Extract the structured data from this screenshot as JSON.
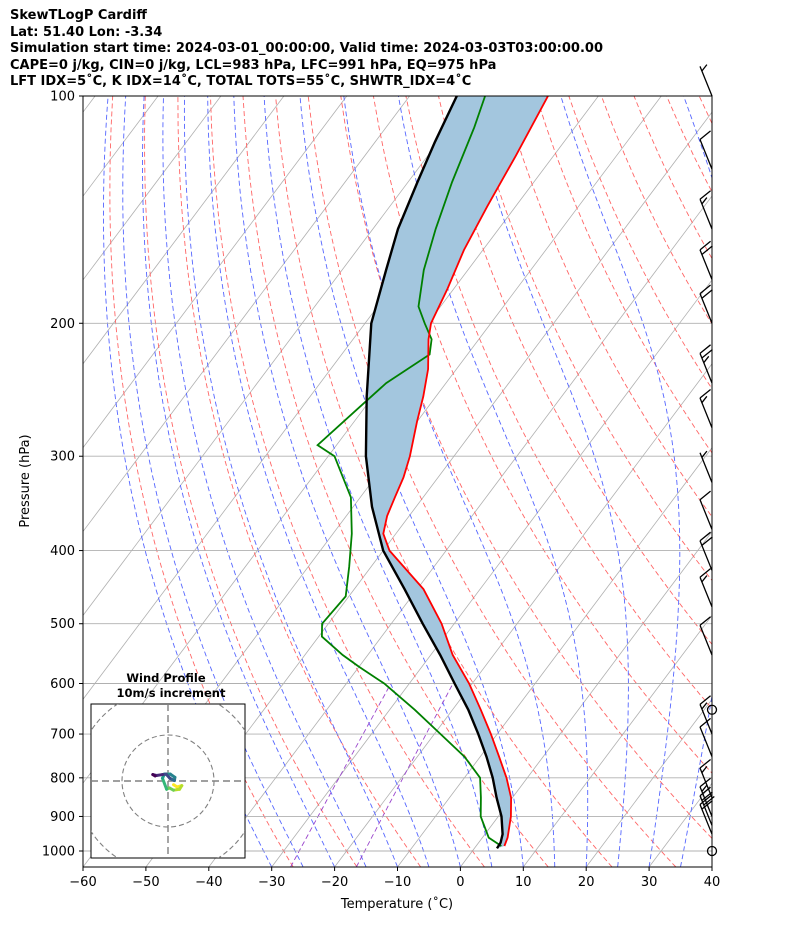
{
  "title_lines": [
    "SkewTLogP Cardiff",
    "Lat: 51.40   Lon: -3.34",
    "Simulation start time: 2024-03-01_00:00:00, Valid time: 2024-03-03T03:00:00.00",
    "CAPE=0 j/kg, CIN=0 j/kg, LCL=983 hPa, LFC=991 hPa, EQ=975 hPa",
    "LFT IDX=5˚C, K IDX=14˚C, TOTAL TOTS=55˚C, SHWTR_IDX=4˚C"
  ],
  "colors": {
    "temperature": "#ff0000",
    "dewpoint": "#008000",
    "parcel": "#000000",
    "cape_fill": "#a3c6de",
    "dry_adiabat": "#ff6666",
    "moist_adiabat": "#5566ff",
    "mixing_ratio": "#9944cc",
    "isotherm": "#b0b0b0",
    "grid": "#b0b0b0"
  },
  "chart_data": {
    "type": "skewt",
    "xlabel": "Temperature (˚C)",
    "ylabel": "Pressure (hPa)",
    "xlim": [
      -60,
      40
    ],
    "ylim": [
      1050,
      100
    ],
    "y_scale": "log",
    "x_ticks": [
      -60,
      -50,
      -40,
      -30,
      -20,
      -10,
      0,
      10,
      20,
      30,
      40
    ],
    "x_tick_labels": [
      "−60",
      "−50",
      "−40",
      "−30",
      "−20",
      "−10",
      "0",
      "10",
      "20",
      "30",
      "40"
    ],
    "y_ticks": [
      100,
      200,
      300,
      400,
      500,
      600,
      700,
      800,
      900,
      1000
    ],
    "y_tick_labels": [
      "100",
      "200",
      "300",
      "400",
      "500",
      "600",
      "700",
      "800",
      "900",
      "1000"
    ],
    "grid": true,
    "series": [
      {
        "key": "temperature",
        "p": [
          985,
          960,
          900,
          850,
          800,
          750,
          700,
          650,
          600,
          550,
          500,
          450,
          400,
          380,
          360,
          340,
          320,
          300,
          270,
          250,
          230,
          210,
          200,
          180,
          160,
          140,
          120,
          100
        ],
        "t": [
          4.5,
          4,
          2,
          -0.2,
          -3.3,
          -7,
          -11,
          -15.5,
          -20.5,
          -26.5,
          -32,
          -39,
          -49,
          -52,
          -53.5,
          -54.5,
          -55.5,
          -57,
          -60,
          -62,
          -64.5,
          -68,
          -69.5,
          -71,
          -73,
          -74.5,
          -76,
          -78
        ]
      },
      {
        "key": "dewpoint",
        "p": [
          985,
          960,
          900,
          850,
          800,
          750,
          700,
          650,
          600,
          570,
          550,
          520,
          500,
          460,
          420,
          380,
          340,
          300,
          290,
          260,
          240,
          220,
          210,
          200,
          190,
          170,
          150,
          130,
          110,
          100
        ],
        "t": [
          4,
          1,
          -2.8,
          -5,
          -7.5,
          -12.5,
          -19,
          -26,
          -34,
          -40,
          -44,
          -49.5,
          -51,
          -50.5,
          -53.5,
          -57,
          -61.5,
          -69,
          -73,
          -71,
          -69.5,
          -66,
          -67.5,
          -70.5,
          -73.5,
          -77,
          -80,
          -83,
          -86,
          -88
        ]
      },
      {
        "key": "parcel",
        "p": [
          992,
          975,
          950,
          900,
          850,
          800,
          750,
          700,
          650,
          600,
          550,
          500,
          450,
          400,
          350,
          300,
          250,
          200,
          170,
          150,
          130,
          115,
          100
        ],
        "t": [
          3.6,
          3.5,
          2.8,
          0.5,
          -2.5,
          -5.5,
          -9,
          -13,
          -17.5,
          -22.8,
          -28.5,
          -35,
          -42,
          -50,
          -57,
          -64,
          -71,
          -79,
          -83,
          -86,
          -88.5,
          -90.5,
          -92.5
        ]
      }
    ],
    "wind_barbs": [
      {
        "p": 1000,
        "speed_kt": 0
      },
      {
        "p": 950,
        "speed_kt": 20
      },
      {
        "p": 925,
        "speed_kt": 30
      },
      {
        "p": 900,
        "speed_kt": 15
      },
      {
        "p": 850,
        "speed_kt": 15
      },
      {
        "p": 750,
        "speed_kt": 10
      },
      {
        "p": 700,
        "speed_kt": 15
      },
      {
        "p": 650,
        "speed_kt": 0
      },
      {
        "p": 550,
        "speed_kt": 10
      },
      {
        "p": 475,
        "speed_kt": 15
      },
      {
        "p": 425,
        "speed_kt": 20
      },
      {
        "p": 375,
        "speed_kt": 10
      },
      {
        "p": 325,
        "speed_kt": 5
      },
      {
        "p": 275,
        "speed_kt": 15
      },
      {
        "p": 240,
        "speed_kt": 25
      },
      {
        "p": 200,
        "speed_kt": 20
      },
      {
        "p": 175,
        "speed_kt": 20
      },
      {
        "p": 150,
        "speed_kt": 15
      },
      {
        "p": 125,
        "speed_kt": 10
      },
      {
        "p": 100,
        "speed_kt": 5
      }
    ],
    "inset": {
      "title": "Wind Profile",
      "subtitle": "10m/s increment",
      "hodograph": [
        {
          "u": 1.2,
          "v": -0.8
        },
        {
          "u": 2.0,
          "v": -1.3
        },
        {
          "u": 3.0,
          "v": -1.0
        },
        {
          "u": 2.5,
          "v": -1.8
        },
        {
          "u": 1.2,
          "v": -2.0
        },
        {
          "u": 0.3,
          "v": -1.5
        },
        {
          "u": -0.3,
          "v": -1.8
        },
        {
          "u": -1.2,
          "v": 0.6
        },
        {
          "u": -0.8,
          "v": 1.5
        },
        {
          "u": 0.5,
          "v": 1.5
        },
        {
          "u": 1.5,
          "v": 0.8
        },
        {
          "u": 1.4,
          "v": 0.1
        },
        {
          "u": 0.4,
          "v": 0.6
        },
        {
          "u": -0.4,
          "v": 1.5
        },
        {
          "u": -1.2,
          "v": 1.4
        },
        {
          "u": -2.5,
          "v": 1.2
        },
        {
          "u": -3.3,
          "v": 1.4
        },
        {
          "u": -2.8,
          "v": 1.1
        }
      ]
    }
  }
}
